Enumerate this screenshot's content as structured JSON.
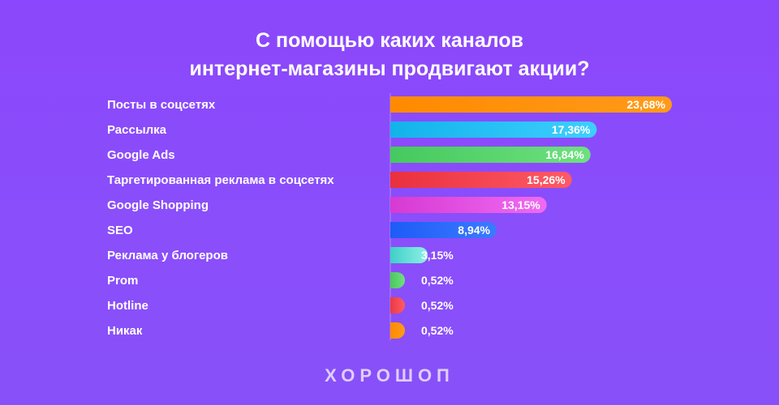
{
  "chart_data": {
    "type": "bar",
    "orientation": "horizontal",
    "title_lines": [
      "С помощью каких каналов",
      "интернет-магазины продвигают акции?"
    ],
    "categories": [
      "Посты в соцсетях",
      "Рассылка",
      "Google Ads",
      "Таргетированная реклама в соцсетях",
      "Google Shopping",
      "SEO",
      "Реклама у блогеров",
      "Prom",
      "Hotline",
      "Никак"
    ],
    "values": [
      23.68,
      17.36,
      16.84,
      15.26,
      13.15,
      8.94,
      3.15,
      0.52,
      0.52,
      0.52
    ],
    "value_labels": [
      "23,68%",
      "17,36%",
      "16,84%",
      "15,26%",
      "13,15%",
      "8,94%",
      "3,15%",
      "0,52%",
      "0,52%",
      "0,52%"
    ],
    "colors": [
      [
        "#ff8a00",
        "#ff9a1a"
      ],
      [
        "#12b3ea",
        "#3ecfff"
      ],
      [
        "#45c95e",
        "#6fe07f"
      ],
      [
        "#e9303e",
        "#ff5a66"
      ],
      [
        "#d63ad2",
        "#f06af2"
      ],
      [
        "#1d5cf6",
        "#3b7bff"
      ],
      [
        "#3fd0c8",
        "#8ef0e6"
      ],
      [
        "#4cc85e",
        "#6fe07f"
      ],
      [
        "#ea3a44",
        "#ff5a66"
      ],
      [
        "#ff8a00",
        "#ff9a1a"
      ]
    ],
    "xlim": [
      0,
      23.68
    ]
  },
  "brand": "ХОРОШОП"
}
